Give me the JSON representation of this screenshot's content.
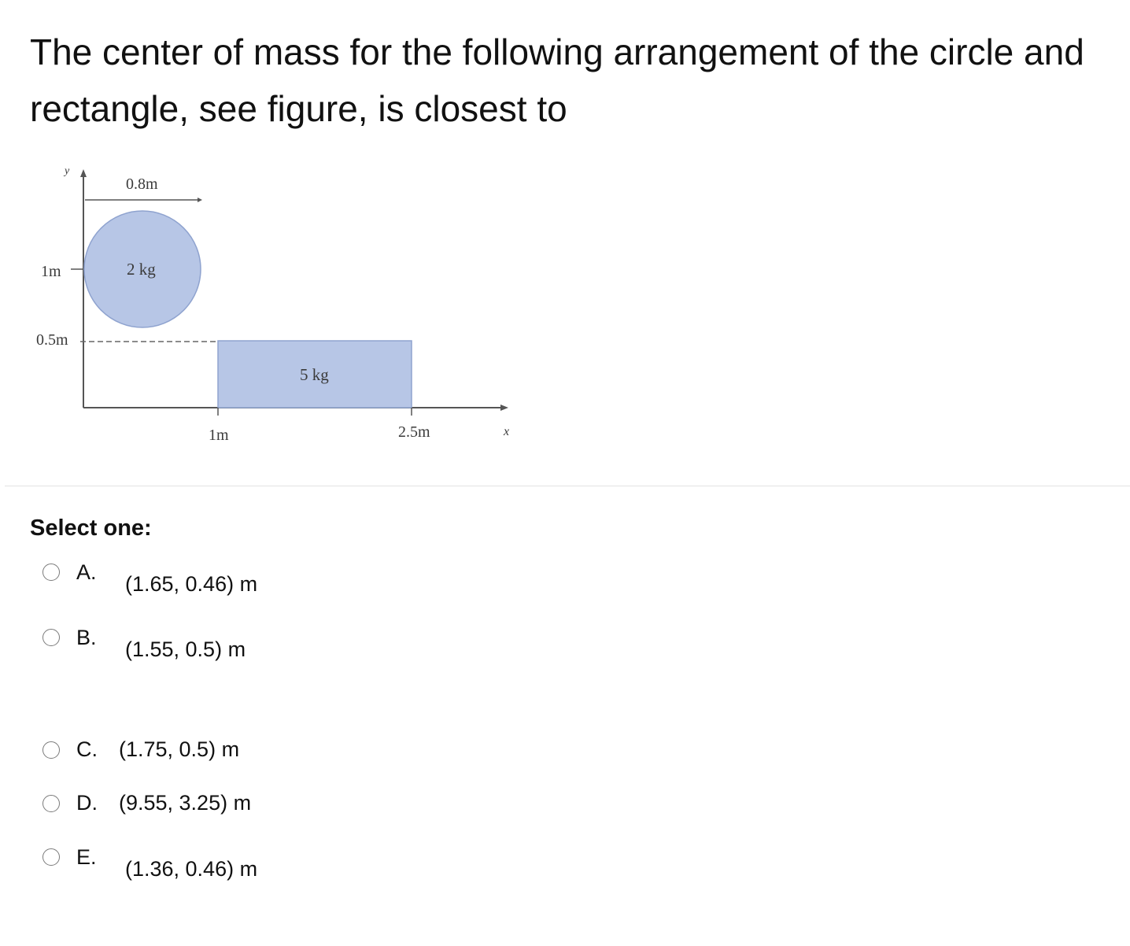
{
  "question": {
    "text": "The center of mass for the following arrangement of the circle and rectangle, see figure, is closest to"
  },
  "figure": {
    "y_axis_label": "y",
    "x_axis_label": "x",
    "width_label": "0.8m",
    "circle_mass_label": "2 kg",
    "rect_mass_label": "5 kg",
    "y_tick_1m": "1m",
    "y_tick_05m": "0.5m",
    "x_tick_1m": "1m",
    "x_tick_25m": "2.5m",
    "fill_color": "#b7c6e6",
    "stroke_color": "#8fa3cf"
  },
  "prompt": "Select one:",
  "options": [
    {
      "letter": "A.",
      "answer": "(1.65, 0.46) m"
    },
    {
      "letter": "B.",
      "answer": "(1.55, 0.5) m"
    },
    {
      "letter": "C.",
      "answer": "(1.75, 0.5) m"
    },
    {
      "letter": "D.",
      "answer": "(9.55, 3.25) m"
    },
    {
      "letter": "E.",
      "answer": "(1.36, 0.46) m"
    }
  ]
}
